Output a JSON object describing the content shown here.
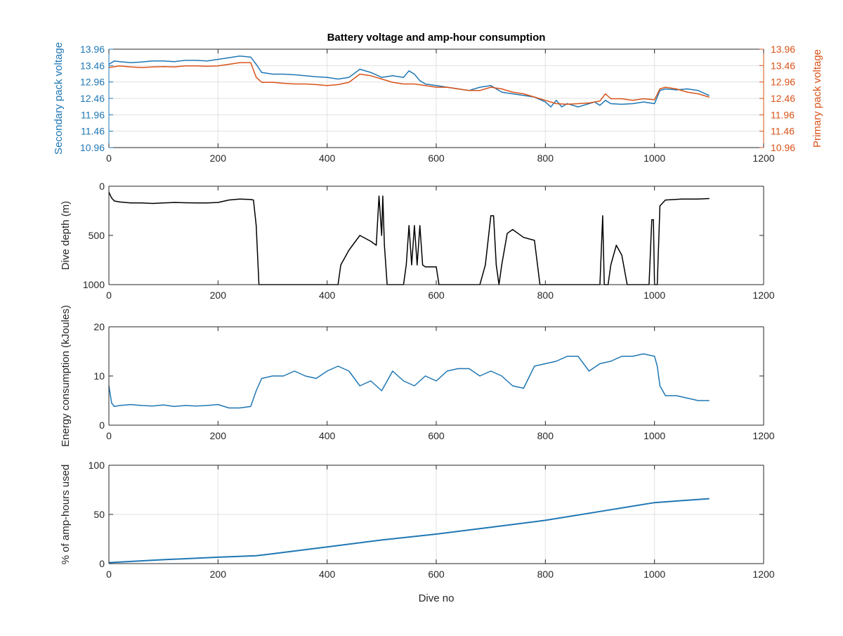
{
  "figure": {
    "title": "Battery voltage and amp-hour consumption"
  },
  "colors": {
    "secondary": "#1f77b4",
    "primary": "#d95319",
    "black": "#000000",
    "grid": "#e1e1e1"
  },
  "chart_data": [
    {
      "type": "line",
      "title": "Battery voltage and amp-hour consumption",
      "xlabel": "",
      "ylabel": "Secondary pack voltage",
      "ylabel_right": "Primary pack voltage",
      "xlim": [
        0,
        1200
      ],
      "ylim": [
        10.96,
        13.96
      ],
      "xticks": [
        0,
        200,
        400,
        600,
        800,
        1000,
        1200
      ],
      "yticks": [
        10.96,
        11.46,
        11.96,
        12.46,
        12.96,
        13.46,
        13.96
      ],
      "yticks_right": [
        10.96,
        11.46,
        11.96,
        12.46,
        12.96,
        13.46,
        13.96
      ],
      "grid": true,
      "series": [
        {
          "axis": "left",
          "color": "#1f77b4",
          "x": [
            0,
            10,
            20,
            40,
            60,
            80,
            100,
            120,
            140,
            160,
            180,
            200,
            220,
            240,
            260,
            270,
            280,
            300,
            320,
            340,
            360,
            380,
            400,
            420,
            440,
            460,
            480,
            500,
            520,
            540,
            550,
            560,
            570,
            580,
            600,
            620,
            640,
            660,
            680,
            700,
            720,
            740,
            760,
            780,
            800,
            810,
            820,
            830,
            840,
            850,
            860,
            870,
            880,
            890,
            900,
            910,
            920,
            940,
            960,
            980,
            1000,
            1010,
            1020,
            1040,
            1060,
            1080,
            1100
          ],
          "y": [
            13.5,
            13.6,
            13.58,
            13.55,
            13.57,
            13.6,
            13.6,
            13.58,
            13.62,
            13.62,
            13.6,
            13.65,
            13.7,
            13.75,
            13.72,
            13.5,
            13.25,
            13.2,
            13.2,
            13.18,
            13.15,
            13.12,
            13.1,
            13.05,
            13.1,
            13.35,
            13.25,
            13.1,
            13.15,
            13.1,
            13.3,
            13.2,
            13.0,
            12.9,
            12.85,
            12.8,
            12.75,
            12.7,
            12.8,
            12.85,
            12.65,
            12.6,
            12.55,
            12.5,
            12.35,
            12.2,
            12.4,
            12.2,
            12.3,
            12.25,
            12.2,
            12.25,
            12.3,
            12.35,
            12.25,
            12.4,
            12.3,
            12.28,
            12.3,
            12.35,
            12.3,
            12.7,
            12.75,
            12.72,
            12.75,
            12.7,
            12.55
          ]
        },
        {
          "axis": "right",
          "color": "#d95319",
          "x": [
            0,
            20,
            40,
            60,
            80,
            100,
            120,
            140,
            160,
            180,
            200,
            220,
            240,
            260,
            270,
            280,
            300,
            320,
            340,
            360,
            380,
            400,
            420,
            440,
            460,
            480,
            500,
            520,
            540,
            560,
            580,
            600,
            620,
            640,
            660,
            680,
            700,
            720,
            740,
            760,
            780,
            800,
            820,
            840,
            860,
            880,
            900,
            910,
            920,
            940,
            960,
            980,
            1000,
            1010,
            1020,
            1040,
            1060,
            1080,
            1100
          ],
          "y": [
            13.4,
            13.45,
            13.42,
            13.4,
            13.42,
            13.43,
            13.42,
            13.45,
            13.45,
            13.44,
            13.45,
            13.5,
            13.55,
            13.55,
            13.1,
            12.95,
            12.95,
            12.92,
            12.9,
            12.9,
            12.88,
            12.85,
            12.88,
            12.95,
            13.2,
            13.15,
            13.05,
            12.95,
            12.9,
            12.9,
            12.85,
            12.8,
            12.8,
            12.75,
            12.7,
            12.7,
            12.8,
            12.75,
            12.65,
            12.6,
            12.5,
            12.4,
            12.3,
            12.28,
            12.3,
            12.32,
            12.38,
            12.6,
            12.45,
            12.45,
            12.4,
            12.45,
            12.42,
            12.75,
            12.8,
            12.75,
            12.65,
            12.6,
            12.5
          ]
        }
      ]
    },
    {
      "type": "line",
      "xlabel": "",
      "ylabel": "Dive depth (m)",
      "xlim": [
        0,
        1200
      ],
      "ylim": [
        1000,
        0
      ],
      "reversed_y": true,
      "xticks": [
        0,
        200,
        400,
        600,
        800,
        1000,
        1200
      ],
      "yticks": [
        0,
        500,
        1000
      ],
      "grid": false,
      "series": [
        {
          "color": "#000000",
          "x": [
            0,
            5,
            10,
            20,
            40,
            60,
            80,
            100,
            120,
            140,
            160,
            180,
            200,
            220,
            240,
            260,
            265,
            270,
            275,
            280,
            300,
            350,
            400,
            410,
            420,
            425,
            440,
            460,
            480,
            490,
            495,
            500,
            502,
            505,
            510,
            520,
            540,
            545,
            550,
            555,
            560,
            565,
            570,
            575,
            580,
            590,
            600,
            605,
            610,
            650,
            680,
            690,
            700,
            705,
            710,
            715,
            720,
            730,
            740,
            750,
            760,
            780,
            790,
            795,
            800,
            850,
            900,
            905,
            908,
            910,
            915,
            920,
            930,
            940,
            950,
            960,
            980,
            990,
            995,
            998,
            1000,
            1005,
            1010,
            1020,
            1050,
            1080,
            1100
          ],
          "y": [
            60,
            120,
            150,
            160,
            170,
            170,
            175,
            170,
            165,
            168,
            170,
            170,
            165,
            140,
            130,
            135,
            140,
            400,
            1000,
            1000,
            1000,
            1000,
            1000,
            1000,
            1000,
            800,
            650,
            500,
            560,
            600,
            100,
            500,
            100,
            600,
            1000,
            1000,
            1000,
            800,
            400,
            800,
            400,
            800,
            400,
            800,
            820,
            820,
            820,
            1000,
            1000,
            1000,
            1000,
            800,
            300,
            300,
            800,
            1000,
            800,
            480,
            440,
            480,
            520,
            550,
            1000,
            1000,
            1000,
            1000,
            1000,
            300,
            1000,
            1000,
            1000,
            800,
            600,
            700,
            1000,
            1000,
            1000,
            1000,
            340,
            340,
            1000,
            1000,
            200,
            140,
            130,
            130,
            125
          ]
        }
      ]
    },
    {
      "type": "line",
      "xlabel": "",
      "ylabel": "Energy consumption (kJoules)",
      "xlim": [
        0,
        1200
      ],
      "ylim": [
        0,
        20
      ],
      "xticks": [
        0,
        200,
        400,
        600,
        800,
        1000,
        1200
      ],
      "yticks": [
        0,
        10,
        20
      ],
      "grid": false,
      "series": [
        {
          "color": "#1f77b4",
          "x": [
            0,
            5,
            10,
            20,
            40,
            60,
            80,
            100,
            120,
            140,
            160,
            180,
            200,
            220,
            240,
            260,
            270,
            280,
            300,
            320,
            340,
            360,
            380,
            400,
            420,
            440,
            460,
            480,
            500,
            520,
            540,
            560,
            580,
            600,
            620,
            640,
            660,
            680,
            700,
            720,
            740,
            760,
            780,
            800,
            820,
            840,
            860,
            880,
            900,
            920,
            940,
            960,
            980,
            1000,
            1005,
            1010,
            1020,
            1040,
            1060,
            1080,
            1100
          ],
          "y": [
            8,
            4.5,
            3.8,
            4,
            4.2,
            4,
            3.9,
            4.1,
            3.8,
            4,
            3.9,
            4,
            4.2,
            3.5,
            3.5,
            3.8,
            7,
            9.5,
            10,
            10,
            11,
            10,
            9.5,
            11,
            12,
            11,
            8,
            9,
            7,
            11,
            9,
            8,
            10,
            9,
            11,
            11.5,
            11.5,
            10,
            11,
            10,
            8,
            7.5,
            12,
            12.5,
            13,
            14,
            14,
            11,
            12.5,
            13,
            14,
            14,
            14.5,
            14,
            12,
            8,
            6,
            6,
            5.5,
            5,
            5
          ]
        }
      ]
    },
    {
      "type": "line",
      "xlabel": "Dive no",
      "ylabel": "% of amp-hours used",
      "xlim": [
        0,
        1200
      ],
      "ylim": [
        0,
        100
      ],
      "xticks": [
        0,
        200,
        400,
        600,
        800,
        1000,
        1200
      ],
      "yticks": [
        0,
        50,
        100
      ],
      "grid": true,
      "series": [
        {
          "color": "#1f77b4",
          "x": [
            0,
            100,
            200,
            270,
            300,
            400,
            500,
            600,
            700,
            800,
            900,
            1000,
            1050,
            1100
          ],
          "y": [
            1,
            4,
            6.5,
            8,
            10,
            17,
            24,
            30,
            37,
            44,
            53,
            62,
            64,
            66
          ]
        }
      ]
    }
  ]
}
